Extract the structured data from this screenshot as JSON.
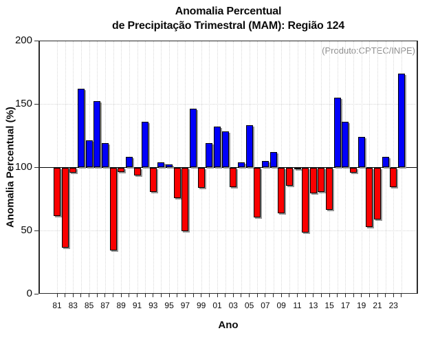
{
  "header": {
    "title_line1": "Anomalia Percentual",
    "title_line2": "de Precipitação Trimestral (MAM): Região 124"
  },
  "annotation": "(Produto:CPTEC/INPE)",
  "chart_data": {
    "type": "bar",
    "title": "Anomalia Percentual de Precipitação Trimestral (MAM): Região 124",
    "xlabel": "Ano",
    "ylabel": "Anomalia Percentual (%)",
    "ylim": [
      0,
      200
    ],
    "yticks": [
      0,
      50,
      100,
      150,
      200
    ],
    "baseline": 100,
    "grid": "dotted vertical per year; dotted horizontal at 50 and 150; solid line at 100",
    "legend_position": "none",
    "x_tick_labels_shown": [
      "81",
      "83",
      "85",
      "87",
      "89",
      "91",
      "93",
      "95",
      "97",
      "99",
      "01",
      "03",
      "05",
      "07",
      "09",
      "11",
      "13",
      "15",
      "17",
      "19",
      "21",
      "23"
    ],
    "categories": [
      "1981",
      "1982",
      "1983",
      "1984",
      "1985",
      "1986",
      "1987",
      "1988",
      "1989",
      "1990",
      "1991",
      "1992",
      "1993",
      "1994",
      "1995",
      "1996",
      "1997",
      "1998",
      "1999",
      "2000",
      "2001",
      "2002",
      "2003",
      "2004",
      "2005",
      "2006",
      "2007",
      "2008",
      "2009",
      "2010",
      "2011",
      "2012",
      "2013",
      "2014",
      "2015",
      "2016",
      "2017",
      "2018",
      "2019",
      "2020",
      "2021",
      "2022",
      "2023",
      "2024"
    ],
    "values": [
      62,
      37,
      96,
      162,
      121,
      152,
      119,
      35,
      97,
      108,
      94,
      136,
      81,
      104,
      102,
      76,
      50,
      146,
      84,
      119,
      132,
      128,
      85,
      104,
      133,
      61,
      105,
      112,
      64,
      86,
      99,
      49,
      80,
      81,
      67,
      155,
      136,
      96,
      124,
      53,
      59,
      108,
      85,
      174
    ],
    "colors": {
      "above_baseline": "#0000fa",
      "below_baseline": "#fa0000",
      "bar_outline": "#000000",
      "bar_shadow": "#979797",
      "annotation_text": "#8f8f8f",
      "gridline": "#d8d8d8",
      "axis": "#2a2a2a"
    }
  }
}
